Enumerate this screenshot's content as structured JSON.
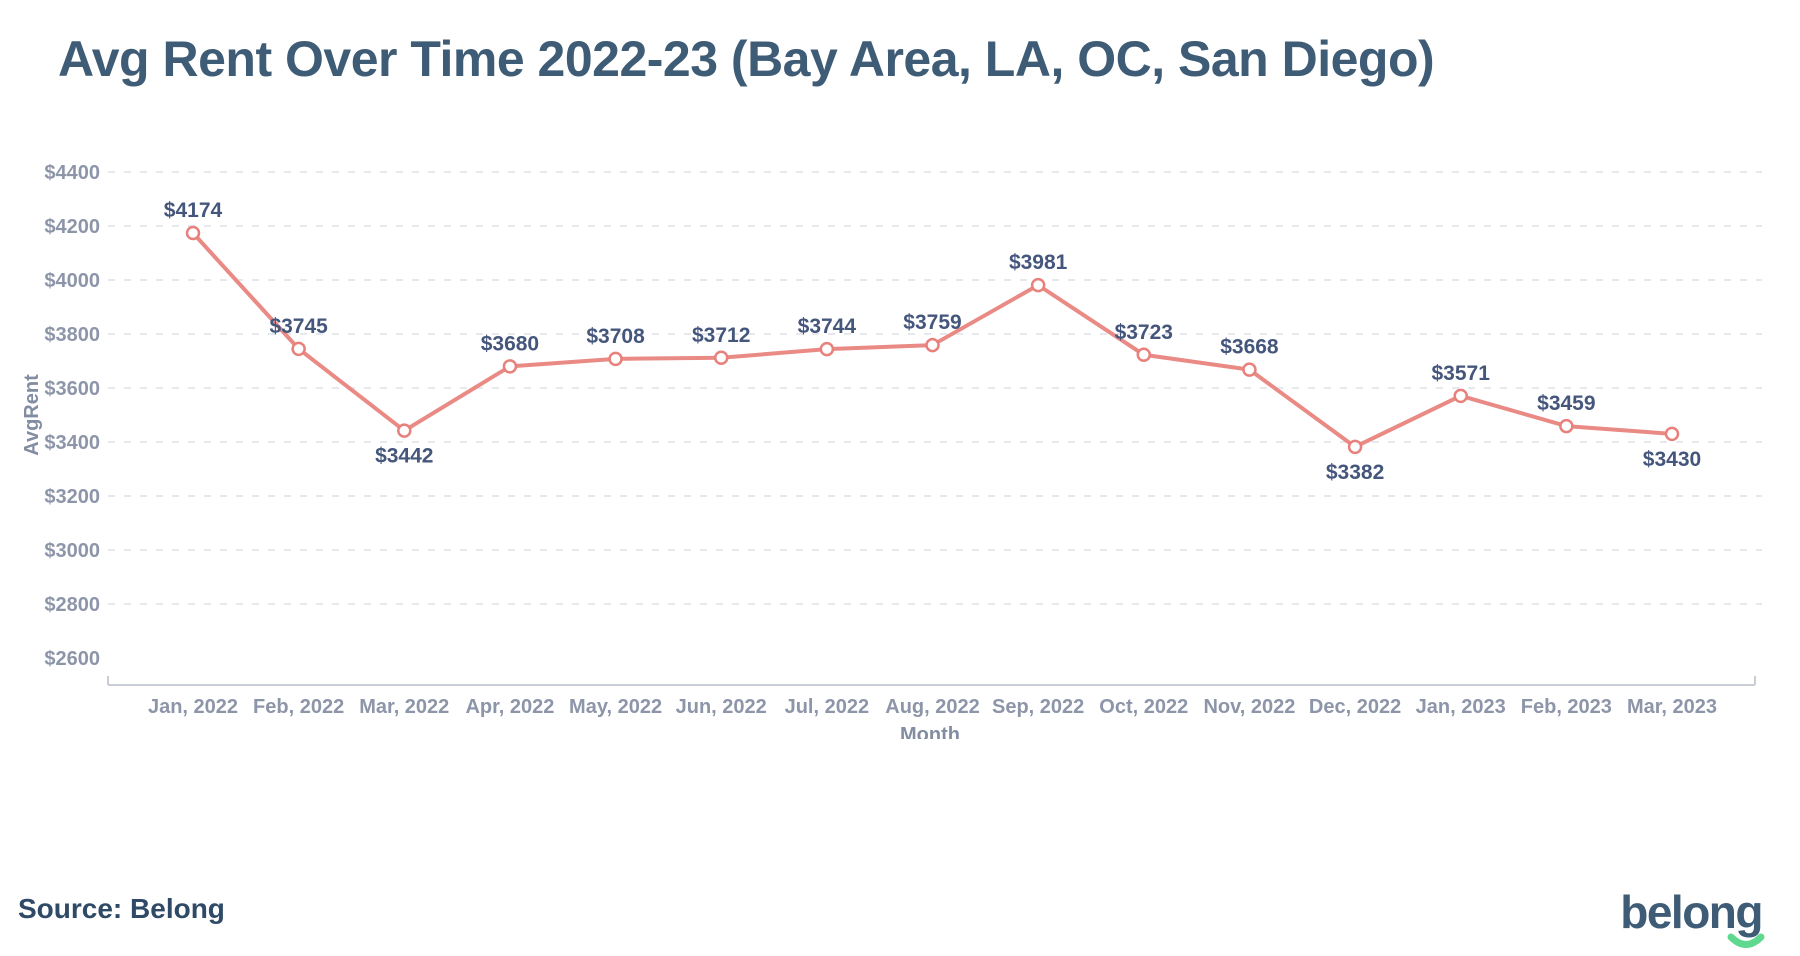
{
  "header": {
    "title": "Avg Rent Over Time 2022-23 (Bay Area, LA, OC, San Diego)"
  },
  "footer": {
    "source_label": "Source: Belong",
    "logo_text": "belong"
  },
  "chart_data": {
    "type": "line",
    "title": "Avg Rent Over Time 2022-23 (Bay Area, LA, OC, San Diego)",
    "xlabel": "Month",
    "ylabel": "AvgRent",
    "categories": [
      "Jan, 2022",
      "Feb, 2022",
      "Mar, 2022",
      "Apr, 2022",
      "May, 2022",
      "Jun, 2022",
      "Jul, 2022",
      "Aug, 2022",
      "Sep, 2022",
      "Oct, 2022",
      "Nov, 2022",
      "Dec, 2022",
      "Jan, 2023",
      "Feb, 2023",
      "Mar, 2023"
    ],
    "series": [
      {
        "name": "AvgRent",
        "values": [
          4174,
          3745,
          3442,
          3680,
          3708,
          3712,
          3744,
          3759,
          3981,
          3723,
          3668,
          3382,
          3571,
          3459,
          3430
        ],
        "color": "#ea8a85",
        "marker": "open-circle"
      }
    ],
    "point_label_prefix": "$",
    "point_label_positions": [
      "above",
      "above",
      "below",
      "above",
      "above",
      "above",
      "above",
      "above",
      "above",
      "above",
      "above",
      "below",
      "above",
      "above",
      "below"
    ],
    "ylim": [
      2500,
      4500
    ],
    "yticks": [
      2600,
      2800,
      3000,
      3200,
      3400,
      3600,
      3800,
      4000,
      4200,
      4400
    ],
    "ytick_prefix": "$",
    "gridlines_skipped_at": [
      2600
    ],
    "grid": "horizontal dashed",
    "legend_position": "none"
  },
  "theme": {
    "title_color": "#3e5c76",
    "data_label_color": "#45567c",
    "tick_label_color": "#8d95a9",
    "axis_title_color": "#838da2",
    "grid_color": "#e7e8ee",
    "axis_line_color": "#c9cdd6",
    "line_color": "#ea8a85",
    "marker_stroke_color": "#e8807b",
    "marker_fill_color": "#ffffff",
    "logo_color": "#3e5c76",
    "logo_smile_color": "#5fd98f",
    "source_color": "#2f4a66"
  }
}
